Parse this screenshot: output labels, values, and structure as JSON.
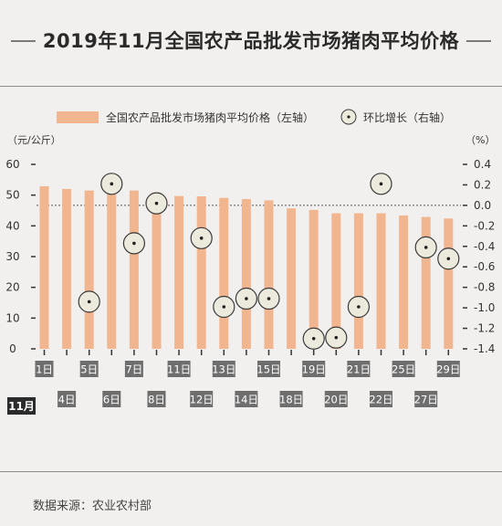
{
  "title": "2019年11月全国农产品批发市场猪肉平均价格",
  "source": "数据来源：农业农村部",
  "chart_data": {
    "type": "bar+scatter",
    "legend": {
      "bar_label": "全国农产品批发市场猪肉平均价格（左轴）",
      "dot_label": "环比增长（右轴）",
      "placement": "top"
    },
    "left_axis": {
      "unit": "（元/公斤）",
      "ylim": [
        0,
        60
      ],
      "ticks": [
        0,
        10,
        20,
        30,
        40,
        50,
        60
      ]
    },
    "right_axis": {
      "unit": "（%）",
      "ylim": [
        -1.4,
        0.4
      ],
      "ticks": [
        "0.4",
        "0.2",
        "0.0",
        "-0.2",
        "-0.4",
        "-0.6",
        "-0.8",
        "-1.0",
        "-1.2",
        "-1.4"
      ]
    },
    "month_label": "11月",
    "categories": [
      "1日",
      "4日",
      "5日",
      "6日",
      "7日",
      "8日",
      "11日",
      "12日",
      "13日",
      "14日",
      "15日",
      "18日",
      "19日",
      "20日",
      "21日",
      "22日",
      "25日",
      "27日",
      "29日"
    ],
    "series": [
      {
        "name": "全国农产品批发市场猪肉平均价格（左轴）",
        "axis": "left",
        "values": [
          52.9,
          52.0,
          51.5,
          51.7,
          51.5,
          50.9,
          49.7,
          49.6,
          49.1,
          48.7,
          48.3,
          45.7,
          45.2,
          44.1,
          44.1,
          44.1,
          43.4,
          42.9,
          42.4
        ]
      },
      {
        "name": "环比增长（右轴）",
        "axis": "right",
        "values": [
          null,
          null,
          -0.94,
          0.21,
          -0.37,
          0.02,
          null,
          -0.32,
          -0.99,
          -0.91,
          -0.91,
          null,
          -1.3,
          -1.29,
          -0.99,
          0.21,
          null,
          -0.41,
          -0.52
        ]
      }
    ],
    "reference_line": 0.0,
    "grid": false
  },
  "colors": {
    "bar": "#f1b58f",
    "dot_fill": "#eceadc",
    "dot_stroke": "#3a3a3a",
    "label_box": "#6e6e6e",
    "month_box": "#2b2b2b"
  }
}
